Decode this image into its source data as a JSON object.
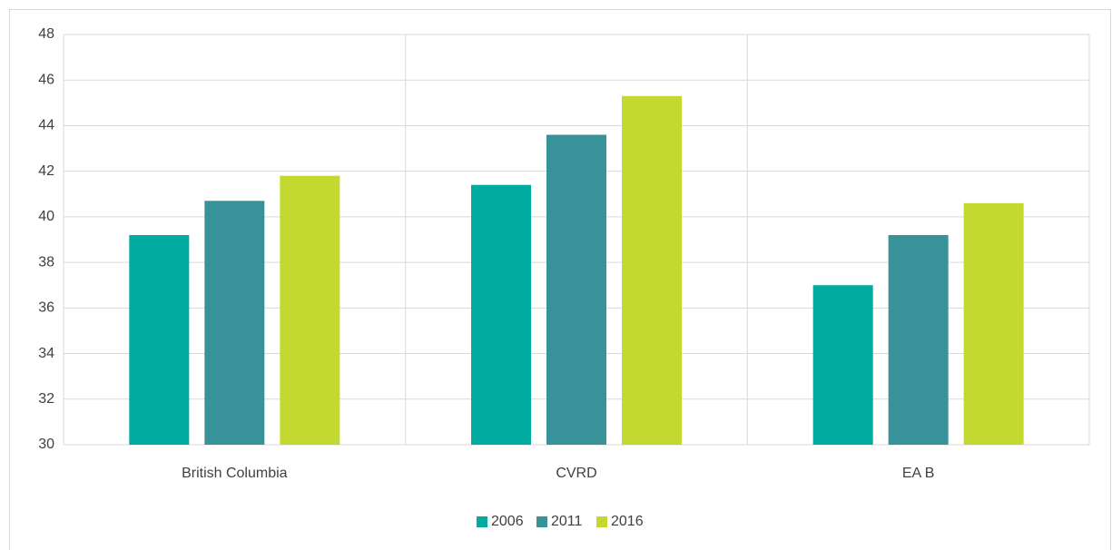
{
  "chart_data": {
    "type": "bar",
    "categories": [
      "British Columbia",
      "CVRD",
      "EA B"
    ],
    "series": [
      {
        "name": "2006",
        "color": "#00aba0",
        "values": [
          39.2,
          41.4,
          37.0
        ]
      },
      {
        "name": "2011",
        "color": "#38929a",
        "values": [
          40.7,
          43.6,
          39.2
        ]
      },
      {
        "name": "2016",
        "color": "#c3d92f",
        "values": [
          41.8,
          45.3,
          40.6
        ]
      }
    ],
    "ylim": [
      30,
      48
    ],
    "yticks": [
      30,
      32,
      34,
      36,
      38,
      40,
      42,
      44,
      46,
      48
    ],
    "grid": true,
    "legend": "bottom"
  }
}
